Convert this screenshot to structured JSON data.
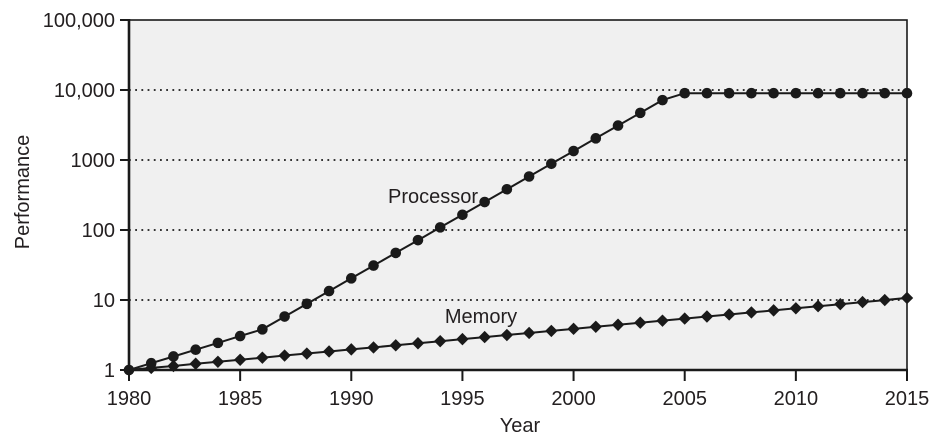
{
  "figure": {
    "y_axis_label": "Performance",
    "x_axis_label": "Year"
  },
  "chart_data": {
    "type": "line",
    "title": "",
    "xlabel": "Year",
    "ylabel": "Performance",
    "x_scale": "linear",
    "y_scale": "log",
    "xlim": [
      1980,
      2015
    ],
    "ylim": [
      1,
      100000
    ],
    "x_ticks": [
      1980,
      1985,
      1990,
      1995,
      2000,
      2005,
      2010,
      2015
    ],
    "y_ticks": [
      "1",
      "10",
      "100",
      "1000",
      "10,000",
      "100,000"
    ],
    "y_tick_values": [
      1,
      10,
      100,
      1000,
      10000,
      100000
    ],
    "grid": "horizontal dotted lines at each decade",
    "legend_position": "inline labels near curves",
    "plot_background": "#f0f0f0",
    "line_color": "#1a1a1a",
    "text_color": "#231f20",
    "x": [
      1980,
      1981,
      1982,
      1983,
      1984,
      1985,
      1986,
      1987,
      1988,
      1989,
      1990,
      1991,
      1992,
      1993,
      1994,
      1995,
      1996,
      1997,
      1998,
      1999,
      2000,
      2001,
      2002,
      2003,
      2004,
      2005,
      2006,
      2007,
      2008,
      2009,
      2010,
      2011,
      2012,
      2013,
      2014,
      2015
    ],
    "series": [
      {
        "name": "Processor",
        "marker": "circle",
        "values": [
          1,
          1.25,
          1.56,
          1.95,
          2.44,
          3.05,
          3.81,
          5.8,
          8.81,
          13.4,
          20.4,
          31,
          47.1,
          71.6,
          109,
          165,
          251,
          382,
          581,
          883,
          1342,
          2040,
          3101,
          4714,
          7166,
          9000,
          9000,
          9000,
          9000,
          9000,
          9000,
          9000,
          9000,
          9000,
          9000,
          9000
        ]
      },
      {
        "name": "Memory",
        "marker": "diamond",
        "values": [
          1,
          1.07,
          1.14,
          1.23,
          1.31,
          1.4,
          1.5,
          1.61,
          1.72,
          1.84,
          1.97,
          2.1,
          2.25,
          2.41,
          2.58,
          2.76,
          2.95,
          3.16,
          3.38,
          3.62,
          3.87,
          4.14,
          4.43,
          4.74,
          5.07,
          5.43,
          5.81,
          6.21,
          6.65,
          7.11,
          7.61,
          8.15,
          8.72,
          9.33,
          9.98,
          10.7
        ]
      }
    ]
  }
}
